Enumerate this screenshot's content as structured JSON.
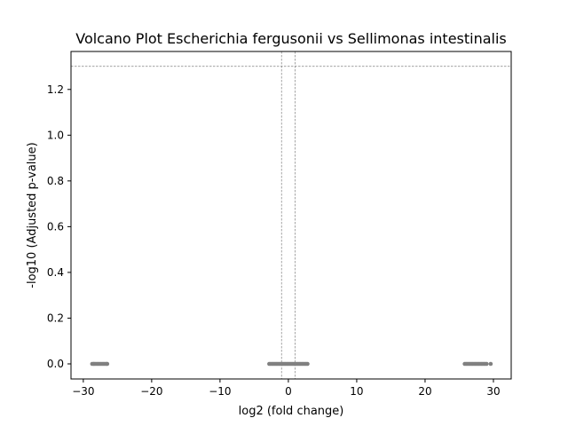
{
  "chart_data": {
    "type": "scatter",
    "title": "Volcano Plot Escherichia fergusonii vs Sellimonas intestinalis",
    "xlabel": "log2 (fold change)",
    "ylabel": "-log10 (Adjusted p-value)",
    "xlim": [
      -31.8,
      32.6
    ],
    "ylim": [
      -0.066,
      1.366
    ],
    "xticks": [
      -30,
      -20,
      -10,
      0,
      10,
      20,
      30
    ],
    "xtick_labels": [
      "−30",
      "−20",
      "−10",
      "0",
      "10",
      "20",
      "30"
    ],
    "yticks": [
      0.0,
      0.2,
      0.4,
      0.6,
      0.8,
      1.0,
      1.2
    ],
    "ytick_labels": [
      "0.0",
      "0.2",
      "0.4",
      "0.6",
      "0.8",
      "1.0",
      "1.2"
    ],
    "threshold_lines": {
      "vertical": [
        -1,
        1
      ],
      "horizontal": [
        1.301
      ]
    },
    "grid": false,
    "point_color": "#808080",
    "threshold_color": "#808080",
    "series": [
      {
        "points": [
          [
            -28.7,
            0
          ],
          [
            -28.5,
            0
          ],
          [
            -28.4,
            0
          ],
          [
            -28.2,
            0
          ],
          [
            -28.0,
            0
          ],
          [
            -27.8,
            0
          ],
          [
            -27.6,
            0
          ],
          [
            -27.4,
            0
          ],
          [
            -27.2,
            0
          ],
          [
            -27.0,
            0
          ],
          [
            -26.8,
            0
          ],
          [
            -26.6,
            0
          ],
          [
            -26.5,
            0
          ],
          [
            -2.8,
            0
          ],
          [
            -2.6,
            0
          ],
          [
            -2.4,
            0
          ],
          [
            -2.2,
            0
          ],
          [
            -2.0,
            0
          ],
          [
            -1.8,
            0
          ],
          [
            -1.6,
            0
          ],
          [
            -1.4,
            0
          ],
          [
            -1.2,
            0
          ],
          [
            -1.0,
            0
          ],
          [
            -0.8,
            0
          ],
          [
            -0.6,
            0
          ],
          [
            -0.4,
            0
          ],
          [
            -0.2,
            0
          ],
          [
            0.0,
            0
          ],
          [
            0.2,
            0
          ],
          [
            0.4,
            0
          ],
          [
            0.6,
            0
          ],
          [
            0.8,
            0
          ],
          [
            1.0,
            0
          ],
          [
            1.2,
            0
          ],
          [
            1.4,
            0
          ],
          [
            1.6,
            0
          ],
          [
            1.8,
            0
          ],
          [
            2.0,
            0
          ],
          [
            2.2,
            0
          ],
          [
            2.4,
            0
          ],
          [
            2.6,
            0
          ],
          [
            2.8,
            0
          ],
          [
            25.8,
            0
          ],
          [
            26.0,
            0
          ],
          [
            26.2,
            0
          ],
          [
            26.4,
            0
          ],
          [
            26.6,
            0
          ],
          [
            26.8,
            0
          ],
          [
            27.0,
            0
          ],
          [
            27.2,
            0
          ],
          [
            27.4,
            0
          ],
          [
            27.6,
            0
          ],
          [
            27.8,
            0
          ],
          [
            28.0,
            0
          ],
          [
            28.2,
            0
          ],
          [
            28.4,
            0
          ],
          [
            28.6,
            0
          ],
          [
            28.8,
            0
          ],
          [
            29.0,
            0
          ],
          [
            29.6,
            0
          ]
        ]
      }
    ]
  }
}
